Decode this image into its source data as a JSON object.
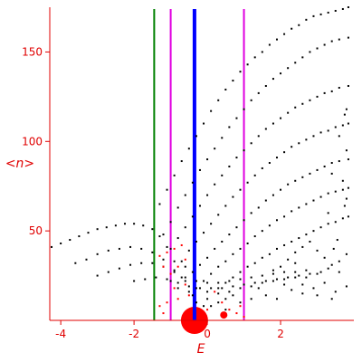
{
  "chart_data": {
    "type": "scatter",
    "title": "",
    "xlabel": "E",
    "ylabel": "<n>",
    "xlim": [
      -4.3,
      4.0
    ],
    "ylim": [
      0,
      175
    ],
    "x_ticks": [
      -4,
      -2,
      0,
      2
    ],
    "x_tick_labels": [
      "-4",
      "-2",
      "0",
      "2"
    ],
    "y_ticks": [
      50,
      100,
      150
    ],
    "y_tick_labels": [
      "50",
      "100",
      "150"
    ],
    "grid": false,
    "legend": "none",
    "colors": {
      "axes": "#e00000",
      "points": "#000000",
      "blob": "#ff0000",
      "green_line": "#008000",
      "blue_line": "#0000ff",
      "magenta_line": "#e000e0"
    },
    "vertical_lines": [
      {
        "x": -1.45,
        "color": "green"
      },
      {
        "x": -1.0,
        "color": "magenta"
      },
      {
        "x": -0.35,
        "color": "blue"
      },
      {
        "x": 1.0,
        "color": "magenta"
      }
    ],
    "series": [
      {
        "color": "black",
        "marker": "dot",
        "points": [
          [
            -4.25,
            41
          ],
          [
            -4.0,
            43
          ],
          [
            -3.75,
            45
          ],
          [
            -3.5,
            47
          ],
          [
            -3.25,
            49
          ],
          [
            -3.0,
            51
          ],
          [
            -2.75,
            52
          ],
          [
            -2.5,
            53
          ],
          [
            -2.25,
            54
          ],
          [
            -2.0,
            54
          ],
          [
            -1.75,
            53
          ],
          [
            -1.5,
            51
          ],
          [
            -1.3,
            47
          ],
          [
            -1.1,
            41
          ],
          [
            -0.9,
            33
          ],
          [
            -0.7,
            24
          ],
          [
            -0.5,
            16
          ],
          [
            -0.3,
            10
          ],
          [
            -0.1,
            8
          ],
          [
            0.1,
            8
          ],
          [
            0.3,
            10
          ],
          [
            0.5,
            12
          ],
          [
            0.7,
            14
          ],
          [
            -3.6,
            32
          ],
          [
            -3.3,
            34
          ],
          [
            -3.0,
            37
          ],
          [
            -2.7,
            39
          ],
          [
            -2.4,
            40
          ],
          [
            -2.1,
            41
          ],
          [
            -1.8,
            40
          ],
          [
            -1.5,
            38
          ],
          [
            -1.2,
            34
          ],
          [
            -0.9,
            28
          ],
          [
            -0.6,
            22
          ],
          [
            -0.3,
            18
          ],
          [
            0.0,
            16
          ],
          [
            0.3,
            15
          ],
          [
            0.6,
            16
          ],
          [
            0.9,
            18
          ],
          [
            1.2,
            19
          ],
          [
            1.5,
            21
          ],
          [
            1.8,
            22
          ],
          [
            2.1,
            23
          ],
          [
            2.4,
            24
          ],
          [
            -3.0,
            25
          ],
          [
            -2.7,
            27
          ],
          [
            -2.4,
            29
          ],
          [
            -2.1,
            31
          ],
          [
            -1.8,
            32
          ],
          [
            -1.5,
            32
          ],
          [
            -1.2,
            30
          ],
          [
            -0.9,
            27
          ],
          [
            -0.6,
            24
          ],
          [
            -0.3,
            22
          ],
          [
            0.0,
            21
          ],
          [
            0.3,
            21
          ],
          [
            0.6,
            22
          ],
          [
            0.9,
            23
          ],
          [
            1.2,
            24
          ],
          [
            1.5,
            25
          ],
          [
            1.8,
            26
          ],
          [
            2.1,
            27
          ],
          [
            2.4,
            27
          ],
          [
            2.7,
            28
          ],
          [
            -2.0,
            22
          ],
          [
            -1.7,
            23
          ],
          [
            -1.4,
            24
          ],
          [
            -1.1,
            23
          ],
          [
            -0.8,
            21
          ],
          [
            -0.5,
            19
          ],
          [
            -0.2,
            18
          ],
          [
            0.1,
            18
          ],
          [
            0.4,
            18
          ],
          [
            0.7,
            19
          ],
          [
            1.0,
            20
          ],
          [
            1.3,
            21
          ],
          [
            1.6,
            22
          ],
          [
            1.9,
            23
          ],
          [
            2.2,
            24
          ],
          [
            2.5,
            25
          ],
          [
            2.8,
            26
          ],
          [
            3.1,
            27
          ],
          [
            -1.3,
            65
          ],
          [
            -1.1,
            73
          ],
          [
            -0.9,
            81
          ],
          [
            -0.7,
            89
          ],
          [
            -0.5,
            96
          ],
          [
            -0.3,
            103
          ],
          [
            -0.1,
            110
          ],
          [
            0.1,
            117
          ],
          [
            0.3,
            123
          ],
          [
            0.5,
            129
          ],
          [
            0.7,
            134
          ],
          [
            0.9,
            139
          ],
          [
            1.1,
            143
          ],
          [
            1.3,
            147
          ],
          [
            1.5,
            150
          ],
          [
            1.7,
            154
          ],
          [
            1.9,
            157
          ],
          [
            2.1,
            160
          ],
          [
            2.3,
            163
          ],
          [
            2.5,
            165
          ],
          [
            2.7,
            168
          ],
          [
            2.9,
            170
          ],
          [
            3.1,
            171
          ],
          [
            3.3,
            172
          ],
          [
            3.5,
            173
          ],
          [
            3.7,
            174
          ],
          [
            3.85,
            175
          ],
          [
            -1.2,
            48
          ],
          [
            -1.0,
            55
          ],
          [
            -0.8,
            63
          ],
          [
            -0.6,
            70
          ],
          [
            -0.4,
            77
          ],
          [
            -0.2,
            84
          ],
          [
            0.0,
            90
          ],
          [
            0.2,
            96
          ],
          [
            0.4,
            102
          ],
          [
            0.6,
            108
          ],
          [
            0.8,
            113
          ],
          [
            1.0,
            118
          ],
          [
            1.2,
            123
          ],
          [
            1.4,
            127
          ],
          [
            1.6,
            131
          ],
          [
            1.8,
            135
          ],
          [
            2.0,
            138
          ],
          [
            2.2,
            141
          ],
          [
            2.4,
            144
          ],
          [
            2.6,
            147
          ],
          [
            2.8,
            150
          ],
          [
            3.0,
            152
          ],
          [
            3.2,
            154
          ],
          [
            3.4,
            156
          ],
          [
            3.6,
            157
          ],
          [
            3.85,
            158
          ],
          [
            -1.0,
            40
          ],
          [
            -0.8,
            46
          ],
          [
            -0.6,
            52
          ],
          [
            -0.4,
            58
          ],
          [
            -0.2,
            64
          ],
          [
            0.0,
            70
          ],
          [
            0.2,
            76
          ],
          [
            0.4,
            81
          ],
          [
            0.6,
            86
          ],
          [
            0.8,
            91
          ],
          [
            1.0,
            95
          ],
          [
            1.2,
            99
          ],
          [
            1.4,
            103
          ],
          [
            1.6,
            107
          ],
          [
            1.8,
            110
          ],
          [
            2.0,
            113
          ],
          [
            2.2,
            116
          ],
          [
            2.4,
            119
          ],
          [
            2.6,
            121
          ],
          [
            2.8,
            123
          ],
          [
            3.0,
            125
          ],
          [
            3.2,
            127
          ],
          [
            3.4,
            128
          ],
          [
            3.6,
            130
          ],
          [
            3.85,
            131
          ],
          [
            -0.7,
            33
          ],
          [
            -0.5,
            39
          ],
          [
            -0.3,
            44
          ],
          [
            -0.1,
            49
          ],
          [
            0.1,
            54
          ],
          [
            0.3,
            59
          ],
          [
            0.5,
            64
          ],
          [
            0.7,
            69
          ],
          [
            0.9,
            73
          ],
          [
            1.1,
            77
          ],
          [
            1.3,
            81
          ],
          [
            1.5,
            85
          ],
          [
            1.7,
            88
          ],
          [
            1.9,
            91
          ],
          [
            2.1,
            94
          ],
          [
            2.3,
            97
          ],
          [
            2.5,
            99
          ],
          [
            2.7,
            101
          ],
          [
            2.9,
            103
          ],
          [
            3.1,
            105
          ],
          [
            3.3,
            106
          ],
          [
            3.5,
            108
          ],
          [
            3.7,
            109
          ],
          [
            3.85,
            110
          ],
          [
            -0.4,
            27
          ],
          [
            -0.2,
            31
          ],
          [
            0.0,
            35
          ],
          [
            0.2,
            40
          ],
          [
            0.4,
            44
          ],
          [
            0.6,
            48
          ],
          [
            0.8,
            52
          ],
          [
            1.0,
            56
          ],
          [
            1.2,
            60
          ],
          [
            1.4,
            63
          ],
          [
            1.6,
            67
          ],
          [
            1.8,
            70
          ],
          [
            2.0,
            73
          ],
          [
            2.2,
            76
          ],
          [
            2.4,
            78
          ],
          [
            2.6,
            80
          ],
          [
            2.8,
            82
          ],
          [
            3.0,
            84
          ],
          [
            3.2,
            86
          ],
          [
            3.4,
            88
          ],
          [
            3.6,
            89
          ],
          [
            3.85,
            90
          ],
          [
            -0.1,
            22
          ],
          [
            0.1,
            26
          ],
          [
            0.3,
            30
          ],
          [
            0.5,
            33
          ],
          [
            0.7,
            37
          ],
          [
            0.9,
            40
          ],
          [
            1.1,
            43
          ],
          [
            1.3,
            47
          ],
          [
            1.5,
            50
          ],
          [
            1.7,
            53
          ],
          [
            1.9,
            56
          ],
          [
            2.1,
            58
          ],
          [
            2.3,
            61
          ],
          [
            2.5,
            63
          ],
          [
            2.7,
            65
          ],
          [
            2.9,
            67
          ],
          [
            3.1,
            69
          ],
          [
            3.3,
            71
          ],
          [
            3.5,
            72
          ],
          [
            3.7,
            73
          ],
          [
            3.85,
            74
          ],
          [
            0.3,
            18
          ],
          [
            0.5,
            21
          ],
          [
            0.7,
            24
          ],
          [
            0.9,
            27
          ],
          [
            1.1,
            30
          ],
          [
            1.3,
            32
          ],
          [
            1.5,
            35
          ],
          [
            1.7,
            37
          ],
          [
            1.9,
            40
          ],
          [
            2.1,
            42
          ],
          [
            2.3,
            44
          ],
          [
            2.5,
            46
          ],
          [
            2.7,
            48
          ],
          [
            2.9,
            50
          ],
          [
            3.1,
            52
          ],
          [
            3.3,
            54
          ],
          [
            3.5,
            55
          ],
          [
            3.7,
            57
          ],
          [
            3.85,
            58
          ],
          [
            2.0,
            30
          ],
          [
            2.2,
            34
          ],
          [
            2.4,
            38
          ],
          [
            2.6,
            41
          ],
          [
            2.8,
            44
          ],
          [
            3.0,
            39
          ],
          [
            3.2,
            35
          ],
          [
            3.4,
            31
          ],
          [
            3.6,
            27
          ],
          [
            2.3,
            17
          ],
          [
            2.6,
            15
          ],
          [
            2.9,
            18
          ],
          [
            3.2,
            21
          ],
          [
            3.5,
            16
          ],
          [
            3.8,
            19
          ],
          [
            1.6,
            14
          ],
          [
            1.9,
            12
          ],
          [
            2.1,
            20
          ],
          [
            2.7,
            24
          ],
          [
            3.0,
            26
          ],
          [
            3.3,
            29
          ],
          [
            3.6,
            33
          ],
          [
            3.8,
            37
          ],
          [
            3.75,
            64
          ],
          [
            3.8,
            68
          ],
          [
            3.7,
            78
          ],
          [
            3.8,
            95
          ],
          [
            3.75,
            115
          ],
          [
            3.8,
            118
          ],
          [
            3.6,
            103
          ],
          [
            3.4,
            82
          ],
          [
            3.3,
            60
          ],
          [
            3.55,
            45
          ],
          [
            3.45,
            40
          ],
          [
            1.2,
            12
          ],
          [
            1.4,
            18
          ],
          [
            0.9,
            10
          ],
          [
            0.5,
            6
          ],
          [
            0.0,
            12
          ],
          [
            -0.4,
            14
          ],
          [
            -0.8,
            18
          ],
          [
            -1.0,
            22
          ],
          [
            -0.6,
            30
          ],
          [
            1.8,
            28
          ],
          [
            2.4,
            32
          ],
          [
            2.6,
            20
          ],
          [
            3.0,
            14
          ],
          [
            3.4,
            12
          ]
        ]
      },
      {
        "color": "red",
        "marker": "dot",
        "points": [
          [
            -0.7,
            42
          ],
          [
            -0.9,
            40
          ],
          [
            -1.1,
            38
          ],
          [
            -1.3,
            36
          ],
          [
            -0.6,
            34
          ],
          [
            -0.8,
            30
          ],
          [
            -1.2,
            30
          ],
          [
            -1.0,
            26
          ],
          [
            -0.6,
            20
          ],
          [
            -0.9,
            18
          ],
          [
            -0.5,
            14
          ],
          [
            -0.8,
            12
          ],
          [
            -1.1,
            10
          ],
          [
            0.2,
            16
          ],
          [
            0.4,
            10
          ],
          [
            0.6,
            6
          ],
          [
            0.9,
            8
          ],
          [
            0.8,
            4
          ],
          [
            1.0,
            2
          ],
          [
            -1.3,
            8
          ],
          [
            -1.2,
            4
          ],
          [
            0.0,
            6
          ]
        ]
      }
    ],
    "blobs": [
      {
        "x": -0.35,
        "y": 0,
        "size": "large"
      },
      {
        "x": 0.45,
        "y": 3,
        "size": "small"
      }
    ]
  }
}
